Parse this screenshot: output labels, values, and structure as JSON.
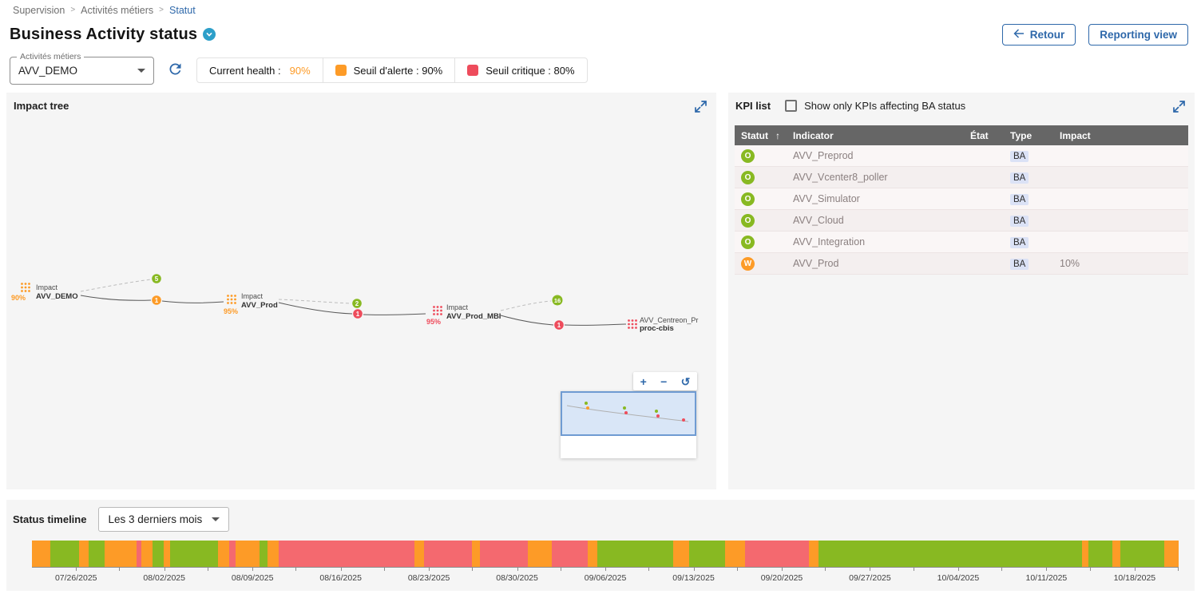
{
  "colors": {
    "ok": "#88B922",
    "warning": "#FD9B27",
    "critical": "#EE4C5C",
    "timeline_critical": "#F4696F",
    "accent": "#2E68AA"
  },
  "breadcrumb": {
    "separator": ">",
    "items": [
      {
        "label": "Supervision"
      },
      {
        "label": "Activités métiers"
      },
      {
        "label": "Statut"
      }
    ]
  },
  "header": {
    "title": "Business Activity status",
    "back_button": "Retour",
    "reporting_button": "Reporting view"
  },
  "filters": {
    "ba_select_label": "Activités métiers",
    "ba_select_value": "AVV_DEMO",
    "legend": {
      "current_health_label": "Current health :",
      "current_health_value": "90%",
      "alert_label": "Seuil d'alerte : 90%",
      "critical_label": "Seuil critique : 80%"
    }
  },
  "impact_tree": {
    "title": "Impact tree",
    "nodes": [
      {
        "prefix": "Impact",
        "name": "AVV_DEMO",
        "health": "90%"
      },
      {
        "prefix": "Impact",
        "name": "AVV_Prod",
        "health": "95%"
      },
      {
        "prefix": "Impact",
        "name": "AVV_Prod_MBI",
        "health": "95%"
      },
      {
        "prefix": "AVV_Centreon_Pr",
        "name": "proc-cbis",
        "health": ""
      }
    ],
    "badges": [
      {
        "value": "5"
      },
      {
        "value": "1"
      },
      {
        "value": "2"
      },
      {
        "value": "1"
      },
      {
        "value": "16"
      },
      {
        "value": "1"
      }
    ],
    "zoom_controls": {
      "zoom_in": "+",
      "zoom_out": "−",
      "reset": "↺"
    }
  },
  "kpi_list": {
    "title": "KPI list",
    "filter_label": "Show only KPIs affecting BA status",
    "sort_icon": "↑",
    "columns": [
      "Statut",
      "Indicator",
      "État",
      "Type",
      "Impact"
    ],
    "rows": [
      {
        "status_letter": "O",
        "status": "ok",
        "indicator": "AVV_Preprod",
        "etat": "",
        "type": "BA",
        "impact": ""
      },
      {
        "status_letter": "O",
        "status": "ok",
        "indicator": "AVV_Vcenter8_poller",
        "etat": "",
        "type": "BA",
        "impact": ""
      },
      {
        "status_letter": "O",
        "status": "ok",
        "indicator": "AVV_Simulator",
        "etat": "",
        "type": "BA",
        "impact": ""
      },
      {
        "status_letter": "O",
        "status": "ok",
        "indicator": "AVV_Cloud",
        "etat": "",
        "type": "BA",
        "impact": ""
      },
      {
        "status_letter": "O",
        "status": "ok",
        "indicator": "AVV_Integration",
        "etat": "",
        "type": "BA",
        "impact": ""
      },
      {
        "status_letter": "W",
        "status": "warning",
        "indicator": "AVV_Prod",
        "etat": "",
        "type": "BA",
        "impact": "10%"
      }
    ]
  },
  "timeline": {
    "title": "Status timeline",
    "period_value": "Les 3 derniers mois",
    "dates": [
      "07/26/2025",
      "08/02/2025",
      "08/09/2025",
      "08/16/2025",
      "08/23/2025",
      "08/30/2025",
      "09/06/2025",
      "09/13/2025",
      "09/20/2025",
      "09/27/2025",
      "10/04/2025",
      "10/11/2025",
      "10/18/2025"
    ],
    "segments": [
      [
        "warning",
        23
      ],
      [
        "ok",
        36
      ],
      [
        "warning",
        12
      ],
      [
        "ok",
        20
      ],
      [
        "warning",
        40
      ],
      [
        "critical",
        6
      ],
      [
        "warning",
        14
      ],
      [
        "ok",
        14
      ],
      [
        "warning",
        8
      ],
      [
        "ok",
        60
      ],
      [
        "warning",
        14
      ],
      [
        "critical",
        8
      ],
      [
        "warning",
        30
      ],
      [
        "ok",
        10
      ],
      [
        "warning",
        14
      ],
      [
        "critical",
        170
      ],
      [
        "warning",
        12
      ],
      [
        "critical",
        60
      ],
      [
        "warning",
        10
      ],
      [
        "critical",
        60
      ],
      [
        "warning",
        30
      ],
      [
        "critical",
        45
      ],
      [
        "warning",
        12
      ],
      [
        "ok",
        95
      ],
      [
        "warning",
        20
      ],
      [
        "ok",
        45
      ],
      [
        "warning",
        25
      ],
      [
        "critical",
        80
      ],
      [
        "warning",
        12
      ],
      [
        "ok",
        330
      ],
      [
        "warning",
        8
      ],
      [
        "ok",
        30
      ],
      [
        "warning",
        10
      ],
      [
        "ok",
        55
      ],
      [
        "warning",
        18
      ]
    ]
  }
}
